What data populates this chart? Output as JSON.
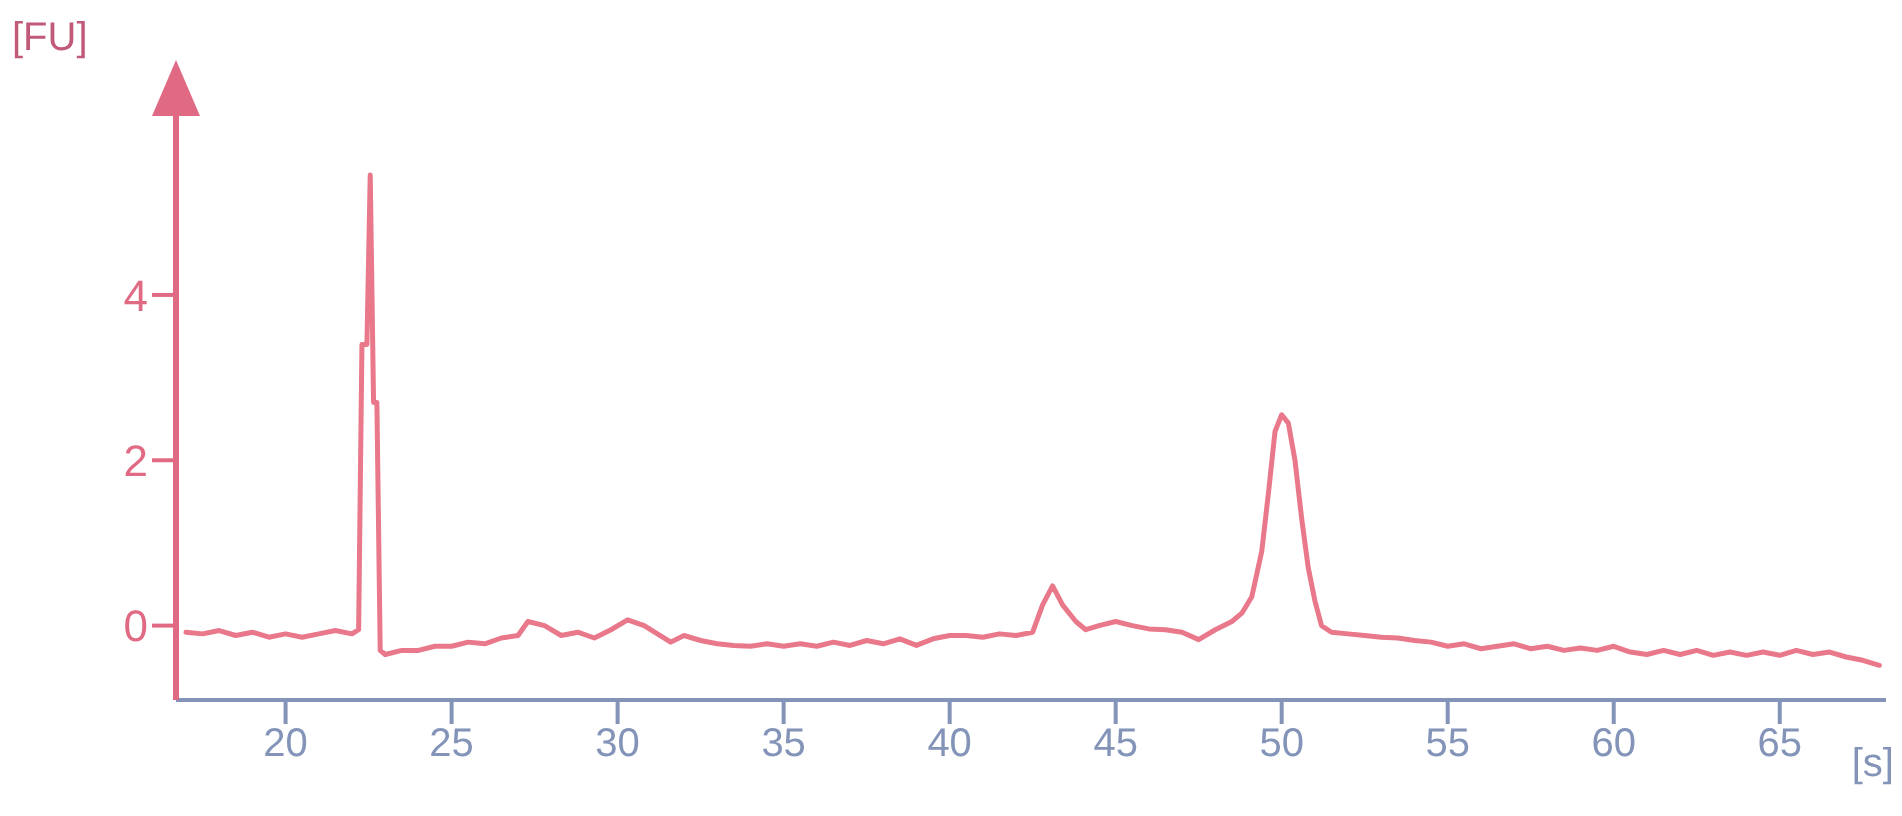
{
  "chart_data": {
    "type": "line",
    "xlabel": "[s]",
    "ylabel": "[FU]",
    "x": [
      17.0,
      17.5,
      18.0,
      18.5,
      19.0,
      19.5,
      20.0,
      20.5,
      21.0,
      21.5,
      22.0,
      22.2,
      22.3,
      22.45,
      22.55,
      22.65,
      22.75,
      22.85,
      23.0,
      23.5,
      24.0,
      24.5,
      25.0,
      25.5,
      26.0,
      26.5,
      27.0,
      27.3,
      27.8,
      28.3,
      28.8,
      29.3,
      29.8,
      30.3,
      30.8,
      31.2,
      31.6,
      32.0,
      32.5,
      33.0,
      33.5,
      34.0,
      34.5,
      35.0,
      35.5,
      36.0,
      36.5,
      37.0,
      37.5,
      38.0,
      38.5,
      39.0,
      39.5,
      40.0,
      40.5,
      41.0,
      41.5,
      42.0,
      42.5,
      42.8,
      43.1,
      43.4,
      43.8,
      44.1,
      44.5,
      45.0,
      45.5,
      46.0,
      46.5,
      47.0,
      47.5,
      48.0,
      48.5,
      48.8,
      49.1,
      49.4,
      49.6,
      49.8,
      50.0,
      50.2,
      50.4,
      50.6,
      50.8,
      51.0,
      51.2,
      51.5,
      52.0,
      52.5,
      53.0,
      53.5,
      54.0,
      54.5,
      55.0,
      55.5,
      56.0,
      56.5,
      57.0,
      57.5,
      58.0,
      58.5,
      59.0,
      59.5,
      60.0,
      60.5,
      61.0,
      61.5,
      62.0,
      62.5,
      63.0,
      63.5,
      64.0,
      64.5,
      65.0,
      65.5,
      66.0,
      66.5,
      67.0,
      67.5,
      68.0
    ],
    "series": [
      {
        "color": "#e8788a",
        "values": [
          -0.08,
          -0.1,
          -0.06,
          -0.12,
          -0.08,
          -0.14,
          -0.1,
          -0.14,
          -0.1,
          -0.06,
          -0.1,
          -0.05,
          3.4,
          3.4,
          5.45,
          2.7,
          2.7,
          -0.3,
          -0.35,
          -0.3,
          -0.3,
          -0.25,
          -0.25,
          -0.2,
          -0.22,
          -0.15,
          -0.12,
          0.05,
          0.0,
          -0.12,
          -0.08,
          -0.15,
          -0.05,
          0.07,
          0.0,
          -0.1,
          -0.2,
          -0.12,
          -0.18,
          -0.22,
          -0.24,
          -0.25,
          -0.22,
          -0.25,
          -0.22,
          -0.25,
          -0.2,
          -0.24,
          -0.18,
          -0.22,
          -0.16,
          -0.24,
          -0.16,
          -0.12,
          -0.12,
          -0.14,
          -0.1,
          -0.12,
          -0.08,
          0.25,
          0.48,
          0.25,
          0.05,
          -0.05,
          0.0,
          0.05,
          0.0,
          -0.04,
          -0.05,
          -0.08,
          -0.17,
          -0.05,
          0.05,
          0.15,
          0.35,
          0.9,
          1.6,
          2.35,
          2.55,
          2.45,
          2.0,
          1.3,
          0.7,
          0.3,
          0.0,
          -0.08,
          -0.1,
          -0.12,
          -0.14,
          -0.15,
          -0.18,
          -0.2,
          -0.25,
          -0.22,
          -0.28,
          -0.25,
          -0.22,
          -0.28,
          -0.25,
          -0.3,
          -0.27,
          -0.3,
          -0.25,
          -0.32,
          -0.35,
          -0.3,
          -0.35,
          -0.3,
          -0.36,
          -0.32,
          -0.36,
          -0.32,
          -0.36,
          -0.3,
          -0.35,
          -0.32,
          -0.38,
          -0.42,
          -0.48
        ]
      }
    ],
    "xlim": [
      16.7,
      68.2
    ],
    "xticks": [
      20,
      25,
      30,
      35,
      40,
      45,
      50,
      55,
      60,
      65
    ],
    "ylim": [
      -0.9,
      6.6
    ],
    "yticks": [
      0,
      2,
      4
    ],
    "grid": false,
    "legend": false,
    "line_style": "solid"
  }
}
